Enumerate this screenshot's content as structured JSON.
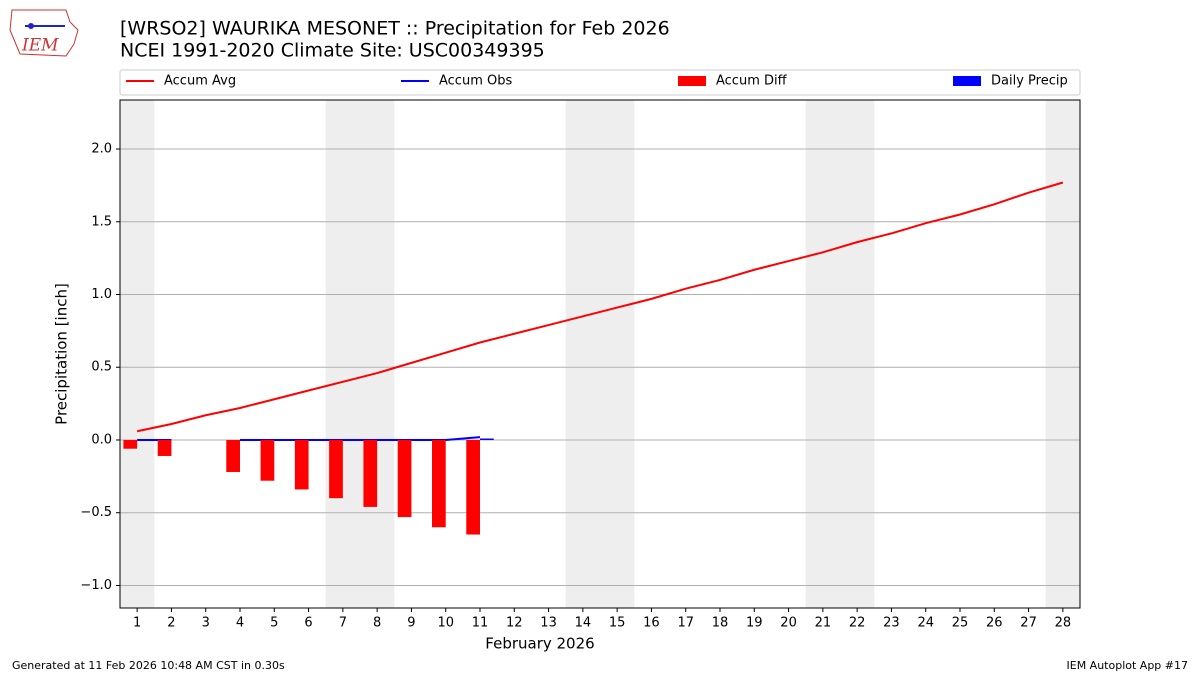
{
  "chart_data": {
    "type": "combo",
    "title": "[WRSO2] WAURIKA MESONET :: Precipitation for Feb 2026",
    "subtitle": "NCEI 1991-2020 Climate Site: USC00349395",
    "logo_text": "IEM",
    "x_label": "February 2026",
    "y_label": "Precipitation [inch]",
    "x": [
      1,
      2,
      3,
      4,
      5,
      6,
      7,
      8,
      9,
      10,
      11,
      12,
      13,
      14,
      15,
      16,
      17,
      18,
      19,
      20,
      21,
      22,
      23,
      24,
      25,
      26,
      27,
      28
    ],
    "xlim": [
      0.5,
      28.5
    ],
    "xticks": [
      1,
      2,
      3,
      4,
      5,
      6,
      7,
      8,
      9,
      10,
      11,
      12,
      13,
      14,
      15,
      16,
      17,
      18,
      19,
      20,
      21,
      22,
      23,
      24,
      25,
      26,
      27,
      28
    ],
    "ylim": [
      -1.155,
      2.337
    ],
    "yticks": [
      {
        "value": -1.0,
        "label": "−1.0"
      },
      {
        "value": -0.5,
        "label": "−0.5"
      },
      {
        "value": 0.0,
        "label": "0.0"
      },
      {
        "value": 0.5,
        "label": "0.5"
      },
      {
        "value": 1.0,
        "label": "1.0"
      },
      {
        "value": 1.5,
        "label": "1.5"
      },
      {
        "value": 2.0,
        "label": "2.0"
      }
    ],
    "grid": true,
    "legend_position": "top",
    "shaded_spans": [
      [
        0.5,
        1.5
      ],
      [
        6.5,
        8.5
      ],
      [
        13.5,
        15.5
      ],
      [
        20.5,
        22.5
      ],
      [
        27.5,
        28.5
      ]
    ],
    "series": [
      {
        "name": "Accum Avg",
        "kind": "line",
        "color": "#ff0000",
        "values": [
          0.06,
          0.11,
          0.17,
          0.22,
          0.28,
          0.34,
          0.4,
          0.46,
          0.53,
          0.6,
          0.67,
          0.73,
          0.79,
          0.85,
          0.91,
          0.97,
          1.04,
          1.1,
          1.17,
          1.23,
          1.29,
          1.36,
          1.42,
          1.49,
          1.55,
          1.62,
          1.7,
          1.77
        ]
      },
      {
        "name": "Accum Obs",
        "kind": "line",
        "color": "#0000ff",
        "values": [
          0,
          0,
          null,
          0,
          0,
          0,
          0,
          0,
          0,
          0,
          0.02,
          null,
          null,
          null,
          null,
          null,
          null,
          null,
          null,
          null,
          null,
          null,
          null,
          null,
          null,
          null,
          null,
          null
        ]
      },
      {
        "name": "Accum Diff",
        "kind": "bar",
        "color": "#ff0000",
        "offset": -0.2,
        "values": [
          -0.06,
          -0.11,
          null,
          -0.22,
          -0.28,
          -0.34,
          -0.4,
          -0.46,
          -0.53,
          -0.6,
          -0.65,
          null,
          null,
          null,
          null,
          null,
          null,
          null,
          null,
          null,
          null,
          null,
          null,
          null,
          null,
          null,
          null,
          null
        ]
      },
      {
        "name": "Daily Precip",
        "kind": "bar",
        "color": "#0000ff",
        "offset": 0.2,
        "values": [
          0,
          0,
          null,
          0,
          0,
          0,
          0,
          0,
          0,
          0,
          0.01,
          null,
          null,
          null,
          null,
          null,
          null,
          null,
          null,
          null,
          null,
          null,
          null,
          null,
          null,
          null,
          null,
          null
        ]
      }
    ],
    "footer_left": "Generated at 11 Feb 2026 10:48 AM CST in 0.30s",
    "footer_right": "IEM Autoplot App #17"
  }
}
